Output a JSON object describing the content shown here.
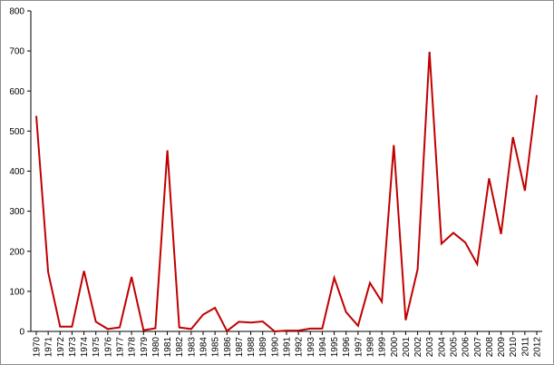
{
  "chart_data": {
    "type": "line",
    "title": "",
    "xlabel": "",
    "ylabel": "",
    "ylim": [
      0,
      800
    ],
    "yticks": [
      0,
      100,
      200,
      300,
      400,
      500,
      600,
      700,
      800
    ],
    "grid": false,
    "legend": "none",
    "series": [
      {
        "color": "#c00000",
        "x": [
          "1970",
          "1971",
          "1972",
          "1973",
          "1974",
          "1975",
          "1976",
          "1977",
          "1978",
          "1979",
          "1980",
          "1981",
          "1982",
          "1983",
          "1984",
          "1985",
          "1986",
          "1987",
          "1988",
          "1989",
          "1990",
          "1991",
          "1992",
          "1993",
          "1994",
          "1995",
          "1996",
          "1997",
          "1998",
          "1999",
          "2000",
          "2001",
          "2002",
          "2003",
          "2004",
          "2005",
          "2006",
          "2007",
          "2008",
          "2009",
          "2010",
          "2011",
          "2012"
        ],
        "values": [
          538,
          148,
          12,
          12,
          151,
          24,
          6,
          10,
          136,
          3,
          8,
          452,
          10,
          6,
          42,
          59,
          1,
          24,
          22,
          25,
          0,
          2,
          2,
          7,
          7,
          134,
          48,
          14,
          121,
          74,
          465,
          28,
          155,
          698,
          219,
          246,
          222,
          168,
          382,
          243,
          485,
          351,
          590
        ]
      }
    ]
  }
}
